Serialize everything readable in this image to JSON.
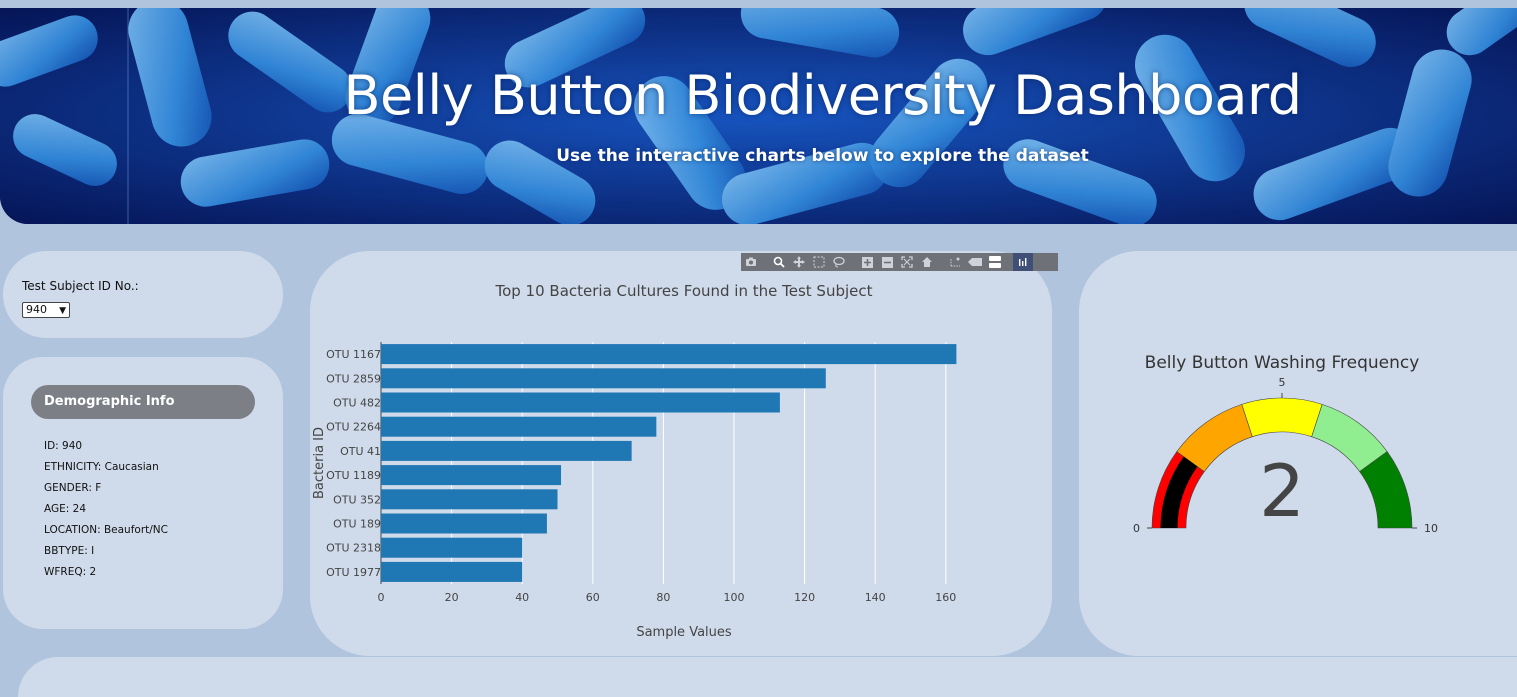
{
  "header": {
    "title": "Belly Button Biodiversity Dashboard",
    "subtitle": "Use the interactive charts below to explore the dataset"
  },
  "selector": {
    "label": "Test Subject ID No.:",
    "selected": "940"
  },
  "demographics": {
    "heading": "Demographic Info",
    "lines": [
      "ID: 940",
      "ETHNICITY: Caucasian",
      "GENDER: F",
      "AGE: 24",
      "LOCATION: Beaufort/NC",
      "BBTYPE: I",
      "WFREQ: 2"
    ]
  },
  "modebar": {
    "icons": [
      "camera-icon",
      "zoom-icon",
      "pan-icon",
      "box-select-icon",
      "lasso-icon",
      "zoom-in-icon",
      "zoom-out-icon",
      "autoscale-icon",
      "reset-axes-icon",
      "spike-lines-icon",
      "hover-closest-icon",
      "hover-compare-icon",
      "plotly-logo-icon"
    ]
  },
  "chart_data": [
    {
      "type": "bar",
      "orientation": "horizontal",
      "title": "Top 10 Bacteria Cultures Found in the Test Subject",
      "xlabel": "Sample Values",
      "ylabel": "Bacteria ID",
      "categories": [
        "OTU 1167",
        "OTU 2859",
        "OTU 482",
        "OTU 2264",
        "OTU 41",
        "OTU 1189",
        "OTU 352",
        "OTU 189",
        "OTU 2318",
        "OTU 1977"
      ],
      "values": [
        163,
        126,
        113,
        78,
        71,
        51,
        50,
        47,
        40,
        40
      ],
      "xlim": [
        0,
        170
      ],
      "xticks": [
        0,
        20,
        40,
        60,
        80,
        100,
        120,
        140,
        160
      ],
      "grid": true,
      "color": "#1f77b4"
    },
    {
      "type": "gauge",
      "title": "Belly Button Washing Frequency",
      "value": 2,
      "range": [
        0,
        10
      ],
      "tick_labels": [
        "0",
        "5",
        "10"
      ],
      "steps": [
        {
          "range": [
            0,
            2
          ],
          "color": "#ff0000"
        },
        {
          "range": [
            2,
            4
          ],
          "color": "#ffa500"
        },
        {
          "range": [
            4,
            6
          ],
          "color": "#ffff00"
        },
        {
          "range": [
            6,
            8
          ],
          "color": "#90ee90"
        },
        {
          "range": [
            8,
            10
          ],
          "color": "#008000"
        }
      ],
      "bar_color": "#000000"
    }
  ]
}
